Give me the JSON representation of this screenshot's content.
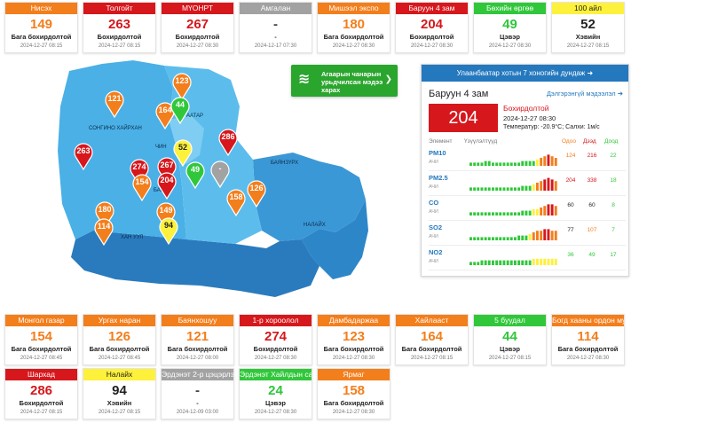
{
  "colors": {
    "orange": "#f37e1c",
    "red": "#d6171c",
    "yellow": "#fdf13b",
    "gray": "#a2a2a2",
    "green": "#30c73a",
    "blue": "#2478be",
    "map_light": "#4db3e8",
    "map_mid": "#3c9ad6",
    "map_dark": "#2c7fc1"
  },
  "top_cards": [
    {
      "title": "Нисэх",
      "value": "149",
      "status": "Бага бохирдолтой",
      "time": "2024-12-27 08:15",
      "level": "orange"
    },
    {
      "title": "Толгойт",
      "value": "263",
      "status": "Бохирдолтой",
      "time": "2024-12-27 08:15",
      "level": "red"
    },
    {
      "title": "МҮОНРТ",
      "value": "267",
      "status": "Бохирдолтой",
      "time": "2024-12-27 08:30",
      "level": "red"
    },
    {
      "title": "Амгалан",
      "value": "-",
      "status": "-",
      "time": "2024-12-17 07:30",
      "level": "gray"
    },
    {
      "title": "Мишээл экспо",
      "value": "180",
      "status": "Бага бохирдолтой",
      "time": "2024-12-27 08:30",
      "level": "orange"
    },
    {
      "title": "Баруун 4 зам",
      "value": "204",
      "status": "Бохирдолтой",
      "time": "2024-12-27 08:30",
      "level": "red"
    },
    {
      "title": "Бөхийн өргөө",
      "value": "49",
      "status": "Цэвэр",
      "time": "2024-12-27 08:30",
      "level": "green"
    },
    {
      "title": "100 айл",
      "value": "52",
      "status": "Хэвийн",
      "time": "2024-12-27 08:15",
      "level": "yellow"
    }
  ],
  "bottom_cards_row1": [
    {
      "title": "Монгол газар",
      "value": "154",
      "status": "Бага бохирдолтой",
      "time": "2024-12-27 08:45",
      "level": "orange"
    },
    {
      "title": "Ургах наран",
      "value": "126",
      "status": "Бага бохирдолтой",
      "time": "2024-12-27 08:45",
      "level": "orange"
    },
    {
      "title": "Баянхошуу",
      "value": "121",
      "status": "Бага бохирдолтой",
      "time": "2024-12-27 08:00",
      "level": "orange"
    },
    {
      "title": "1-р хороолол",
      "value": "274",
      "status": "Бохирдолтой",
      "time": "2024-12-27 08:30",
      "level": "red"
    },
    {
      "title": "Дамбадаржаа",
      "value": "123",
      "status": "Бага бохирдолтой",
      "time": "2024-12-27 08:30",
      "level": "orange"
    },
    {
      "title": "Хайлааст",
      "value": "164",
      "status": "Бага бохирдолтой",
      "time": "2024-12-27 08:15",
      "level": "orange"
    },
    {
      "title": "5 буудал",
      "value": "44",
      "status": "Цэвэр",
      "time": "2024-12-27 08:15",
      "level": "green"
    },
    {
      "title": "Богд хааны ордон музей",
      "value": "114",
      "status": "Бага бохирдолтой",
      "time": "2024-12-27 08:30",
      "level": "orange"
    }
  ],
  "bottom_cards_row2": [
    {
      "title": "Шархад",
      "value": "286",
      "status": "Бохирдолтой",
      "time": "2024-12-27 08:15",
      "level": "red"
    },
    {
      "title": "Налайх",
      "value": "94",
      "status": "Хэвийн",
      "time": "2024-12-27 08:15",
      "level": "yellow"
    },
    {
      "title": "Эрдэнэт 2-р цэцэрлэг",
      "value": "-",
      "status": "-",
      "time": "2024-12-09 03:00",
      "level": "gray"
    },
    {
      "title": "Эрдэнэт Хайлдын сан",
      "value": "24",
      "status": "Цэвэр",
      "time": "2024-12-27 08:30",
      "level": "green"
    },
    {
      "title": "Ярмаг",
      "value": "158",
      "status": "Бага бохирдолтой",
      "time": "2024-12-27 08:30",
      "level": "orange"
    }
  ],
  "map": {
    "districts": [
      "СОНГИНО ХАЙРХАН",
      "ЧИН",
      "БАР",
      "ААТАР",
      "БАЯНЗҮРХ",
      "ХАН УУЛ",
      "НАЛАЙХ"
    ],
    "pins": [
      {
        "value": "123",
        "level": "orange"
      },
      {
        "value": "121",
        "level": "orange"
      },
      {
        "value": "164",
        "level": "orange"
      },
      {
        "value": "44",
        "level": "green"
      },
      {
        "value": "52",
        "level": "yellow"
      },
      {
        "value": "286",
        "level": "red"
      },
      {
        "value": "263",
        "level": "red"
      },
      {
        "value": "274",
        "level": "red"
      },
      {
        "value": "267",
        "level": "red"
      },
      {
        "value": "204",
        "level": "red"
      },
      {
        "value": "154",
        "level": "orange"
      },
      {
        "value": "49",
        "level": "green"
      },
      {
        "value": "-",
        "level": "gray"
      },
      {
        "value": "126",
        "level": "orange"
      },
      {
        "value": "158",
        "level": "orange"
      },
      {
        "value": "180",
        "level": "orange"
      },
      {
        "value": "149",
        "level": "orange"
      },
      {
        "value": "114",
        "level": "orange"
      },
      {
        "value": "94",
        "level": "yellow"
      }
    ]
  },
  "forecast_button": {
    "label": "Агаарын чанарын урьдчилсан мэдээ харах",
    "icon": "wind-icon"
  },
  "panel": {
    "header": "Улаанбаатар хотын 7 хоногийн дундаж",
    "station": "Баруун 4 зам",
    "detail_link": "Дэлгэрэнгүй мэдээлэл",
    "aqi": "204",
    "status": "Бохирдолтой",
    "time": "2024-12-27 08:30",
    "meteo": "Температур: -20.9°C; Салхи: 1м/с",
    "col_element": "Элемент",
    "col_indicator": "Үзүүлэлтүүд",
    "col_current": "Одоо",
    "col_max": "Дээд",
    "col_min": "Доод",
    "pollutants": [
      {
        "name": "PM10",
        "unit": "АЧИ",
        "now": "124",
        "max": "216",
        "min": "22",
        "now_level": "orange",
        "max_level": "red",
        "min_level": "green",
        "trend": [
          2,
          2,
          2,
          2,
          3,
          3,
          2,
          2,
          2,
          2,
          2,
          2,
          2,
          2,
          3,
          3,
          3,
          3,
          4,
          5,
          6,
          7,
          6,
          5
        ]
      },
      {
        "name": "PM2.5",
        "unit": "АЧИ",
        "now": "204",
        "max": "338",
        "min": "18",
        "now_level": "red",
        "max_level": "red",
        "min_level": "green",
        "trend": [
          2,
          2,
          2,
          2,
          2,
          2,
          2,
          2,
          2,
          2,
          2,
          2,
          2,
          2,
          3,
          3,
          3,
          4,
          5,
          6,
          7,
          8,
          7,
          6
        ]
      },
      {
        "name": "CO",
        "unit": "АЧИ",
        "now": "60",
        "max": "60",
        "min": "8",
        "now_level": "gray",
        "max_level": "gray",
        "min_level": "green",
        "trend": [
          2,
          2,
          2,
          2,
          2,
          2,
          2,
          2,
          2,
          2,
          2,
          2,
          2,
          2,
          3,
          3,
          3,
          4,
          4,
          5,
          6,
          7,
          7,
          6
        ]
      },
      {
        "name": "SO2",
        "unit": "АЧИ",
        "now": "77",
        "max": "107",
        "min": "7",
        "now_level": "gray",
        "max_level": "orange",
        "min_level": "green",
        "trend": [
          2,
          2,
          2,
          2,
          2,
          2,
          2,
          2,
          2,
          2,
          2,
          2,
          2,
          3,
          3,
          3,
          4,
          5,
          6,
          6,
          7,
          7,
          6,
          6
        ]
      },
      {
        "name": "NO2",
        "unit": "АЧИ",
        "now": "36",
        "max": "49",
        "min": "17",
        "now_level": "green",
        "max_level": "green",
        "min_level": "green",
        "trend": [
          2,
          2,
          2,
          3,
          3,
          3,
          3,
          3,
          3,
          3,
          3,
          3,
          3,
          3,
          3,
          3,
          3,
          4,
          4,
          4,
          4,
          4,
          4,
          4
        ]
      }
    ]
  }
}
